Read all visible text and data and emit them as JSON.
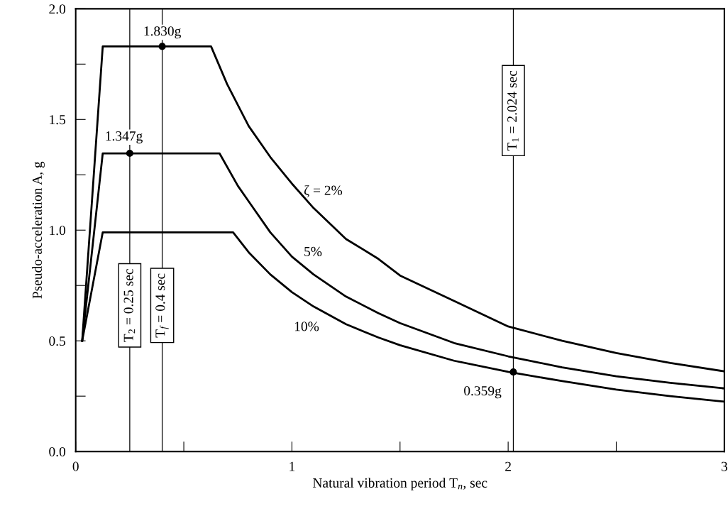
{
  "chart_data": {
    "type": "line",
    "xlabel": "Natural vibration period T$_{n}$, sec",
    "ylabel": "Pseudo-acceleration A, g",
    "xlim": [
      0,
      3
    ],
    "ylim": [
      0,
      2.0
    ],
    "xticks": [
      0,
      {
        "value": 0.5,
        "label": null
      },
      1,
      {
        "value": 1.5,
        "label": null
      },
      2,
      {
        "value": 2.5,
        "label": null
      },
      3
    ],
    "yticks": [
      "0.0",
      {
        "value": 0.25,
        "label": null
      },
      {
        "value": 0.5,
        "label": "0.5"
      },
      {
        "value": 0.75,
        "label": null
      },
      {
        "value": 1.0,
        "label": "1.0"
      },
      {
        "value": 1.25,
        "label": null
      },
      {
        "value": 1.5,
        "label": "1.5"
      },
      {
        "value": 1.75,
        "label": null
      },
      {
        "value": 2.0,
        "label": "2.0"
      }
    ],
    "grid": false,
    "legend": false,
    "marker": "none",
    "line_style": "solid",
    "series": [
      {
        "name": "ζ = 2%",
        "color": "#000000",
        "x": [
          0.03,
          0.125,
          0.626,
          0.7,
          0.8,
          0.9,
          1.0,
          1.1,
          1.25,
          1.4,
          1.5,
          1.75,
          2.0,
          2.25,
          2.5,
          2.75,
          3.0
        ],
        "values": [
          0.5,
          1.83,
          1.83,
          1.66,
          1.47,
          1.33,
          1.21,
          1.1,
          0.96,
          0.87,
          0.795,
          0.68,
          0.565,
          0.5,
          0.445,
          0.4,
          0.362
        ]
      },
      {
        "name": "5%",
        "color": "#000000",
        "x": [
          0.03,
          0.125,
          0.665,
          0.75,
          0.8,
          0.9,
          1.0,
          1.1,
          1.25,
          1.4,
          1.5,
          1.75,
          2.0,
          2.25,
          2.5,
          2.75,
          3.0
        ],
        "values": [
          0.5,
          1.347,
          1.347,
          1.2,
          1.13,
          0.99,
          0.88,
          0.8,
          0.7,
          0.625,
          0.58,
          0.49,
          0.43,
          0.38,
          0.34,
          0.31,
          0.285
        ]
      },
      {
        "name": "10%",
        "color": "#000000",
        "x": [
          0.03,
          0.125,
          0.728,
          0.8,
          0.9,
          1.0,
          1.1,
          1.25,
          1.4,
          1.5,
          1.75,
          2.0,
          2.25,
          2.5,
          2.75,
          3.0
        ],
        "values": [
          0.5,
          0.99,
          0.99,
          0.9,
          0.8,
          0.72,
          0.655,
          0.575,
          0.515,
          0.48,
          0.41,
          0.36,
          0.318,
          0.28,
          0.25,
          0.225
        ]
      },
      {
        "type": "scatter",
        "marker": "circle",
        "color": "#000000",
        "x": [
          0.4,
          0.25,
          2.024
        ],
        "values": [
          1.83,
          1.347,
          0.359
        ]
      }
    ],
    "ref_lines": [
      {
        "axis": "x",
        "value": 0.25,
        "label": "T$_{2}$ = 0.25 sec",
        "color": "#000000"
      },
      {
        "axis": "x",
        "value": 0.4,
        "label": "T$_{f}$ = 0.4 sec",
        "color": "#000000"
      },
      {
        "axis": "x",
        "value": 2.024,
        "label": "T$_{1}$ = 2.024 sec",
        "color": "#000000"
      }
    ],
    "annotations": [
      {
        "text": "1.830g",
        "x": 0.4,
        "y": 1.83
      },
      {
        "text": "1.347g",
        "x": 0.25,
        "y": 1.347
      },
      {
        "text": "0.359g",
        "x": 2.024,
        "y": 0.359
      }
    ]
  }
}
